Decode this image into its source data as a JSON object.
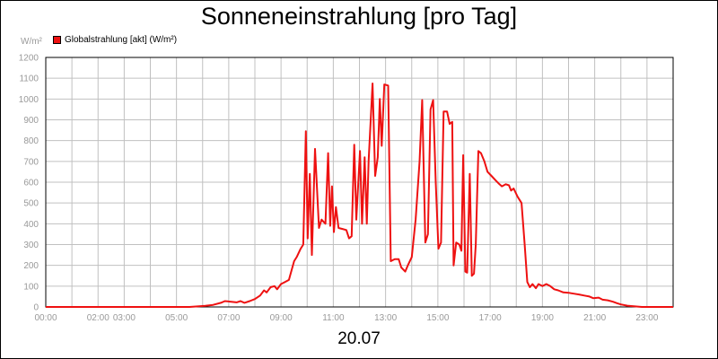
{
  "chart_data": {
    "type": "line",
    "title": "Sonneneinstrahlung [pro Tag]",
    "ylabel": "W/m²",
    "xlabel": "20.07",
    "legend": {
      "position": "top-left",
      "label": "Globalstrahlung [akt] (W/m²)"
    },
    "grid": true,
    "xlim": [
      0,
      24
    ],
    "ylim": [
      0,
      1200
    ],
    "x_ticks": [
      {
        "t": 0,
        "label": "00:00"
      },
      {
        "t": 2,
        "label": "02:00"
      },
      {
        "t": 3,
        "label": "03:00"
      },
      {
        "t": 5,
        "label": "05:00"
      },
      {
        "t": 7,
        "label": "07:00"
      },
      {
        "t": 9,
        "label": "09:00"
      },
      {
        "t": 11,
        "label": "11:00"
      },
      {
        "t": 13,
        "label": "13:00"
      },
      {
        "t": 15,
        "label": "15:00"
      },
      {
        "t": 17,
        "label": "17:00"
      },
      {
        "t": 19,
        "label": "19:00"
      },
      {
        "t": 21,
        "label": "21:00"
      },
      {
        "t": 23,
        "label": "23:00"
      }
    ],
    "y_ticks": [
      0,
      100,
      200,
      300,
      400,
      500,
      600,
      700,
      800,
      900,
      1000,
      1100,
      1200
    ],
    "series": [
      {
        "name": "Globalstrahlung [akt] (W/m²)",
        "color": "#ee1111",
        "points": [
          [
            0,
            0
          ],
          [
            5.5,
            0
          ],
          [
            6.1,
            5
          ],
          [
            6.4,
            10
          ],
          [
            6.7,
            20
          ],
          [
            6.85,
            28
          ],
          [
            7.1,
            25
          ],
          [
            7.3,
            22
          ],
          [
            7.45,
            28
          ],
          [
            7.6,
            20
          ],
          [
            7.8,
            28
          ],
          [
            8.0,
            38
          ],
          [
            8.2,
            55
          ],
          [
            8.35,
            80
          ],
          [
            8.45,
            70
          ],
          [
            8.6,
            95
          ],
          [
            8.75,
            100
          ],
          [
            8.85,
            85
          ],
          [
            9.0,
            110
          ],
          [
            9.15,
            120
          ],
          [
            9.3,
            130
          ],
          [
            9.5,
            220
          ],
          [
            9.6,
            240
          ],
          [
            9.75,
            280
          ],
          [
            9.85,
            300
          ],
          [
            9.95,
            845
          ],
          [
            10.02,
            330
          ],
          [
            10.1,
            640
          ],
          [
            10.18,
            250
          ],
          [
            10.3,
            760
          ],
          [
            10.45,
            380
          ],
          [
            10.55,
            420
          ],
          [
            10.7,
            400
          ],
          [
            10.8,
            740
          ],
          [
            10.88,
            390
          ],
          [
            10.95,
            580
          ],
          [
            11.02,
            360
          ],
          [
            11.1,
            480
          ],
          [
            11.2,
            380
          ],
          [
            11.35,
            375
          ],
          [
            11.5,
            370
          ],
          [
            11.6,
            330
          ],
          [
            11.7,
            340
          ],
          [
            11.8,
            780
          ],
          [
            11.88,
            420
          ],
          [
            12.02,
            750
          ],
          [
            12.1,
            400
          ],
          [
            12.2,
            720
          ],
          [
            12.28,
            400
          ],
          [
            12.35,
            700
          ],
          [
            12.5,
            1075
          ],
          [
            12.6,
            630
          ],
          [
            12.7,
            720
          ],
          [
            12.78,
            1000
          ],
          [
            12.85,
            775
          ],
          [
            12.95,
            1070
          ],
          [
            13.1,
            1065
          ],
          [
            13.2,
            220
          ],
          [
            13.35,
            230
          ],
          [
            13.5,
            230
          ],
          [
            13.6,
            190
          ],
          [
            13.75,
            170
          ],
          [
            13.85,
            200
          ],
          [
            14.0,
            240
          ],
          [
            14.15,
            420
          ],
          [
            14.3,
            700
          ],
          [
            14.4,
            995
          ],
          [
            14.52,
            310
          ],
          [
            14.62,
            350
          ],
          [
            14.72,
            950
          ],
          [
            14.82,
            995
          ],
          [
            14.92,
            600
          ],
          [
            15.02,
            280
          ],
          [
            15.12,
            310
          ],
          [
            15.22,
            940
          ],
          [
            15.35,
            940
          ],
          [
            15.45,
            880
          ],
          [
            15.55,
            890
          ],
          [
            15.6,
            200
          ],
          [
            15.7,
            310
          ],
          [
            15.82,
            300
          ],
          [
            15.9,
            270
          ],
          [
            15.97,
            730
          ],
          [
            16.05,
            170
          ],
          [
            16.12,
            165
          ],
          [
            16.22,
            640
          ],
          [
            16.3,
            150
          ],
          [
            16.38,
            160
          ],
          [
            16.45,
            300
          ],
          [
            16.55,
            750
          ],
          [
            16.65,
            740
          ],
          [
            16.78,
            700
          ],
          [
            16.9,
            650
          ],
          [
            17.05,
            630
          ],
          [
            17.2,
            610
          ],
          [
            17.32,
            595
          ],
          [
            17.45,
            580
          ],
          [
            17.6,
            590
          ],
          [
            17.72,
            585
          ],
          [
            17.8,
            560
          ],
          [
            17.9,
            570
          ],
          [
            18.05,
            530
          ],
          [
            18.2,
            500
          ],
          [
            18.32,
            300
          ],
          [
            18.42,
            120
          ],
          [
            18.52,
            95
          ],
          [
            18.62,
            110
          ],
          [
            18.75,
            90
          ],
          [
            18.85,
            110
          ],
          [
            19.0,
            100
          ],
          [
            19.15,
            110
          ],
          [
            19.3,
            100
          ],
          [
            19.45,
            85
          ],
          [
            19.6,
            80
          ],
          [
            19.8,
            70
          ],
          [
            20.0,
            68
          ],
          [
            20.2,
            64
          ],
          [
            20.4,
            60
          ],
          [
            20.6,
            55
          ],
          [
            20.8,
            50
          ],
          [
            20.95,
            42
          ],
          [
            21.15,
            45
          ],
          [
            21.3,
            35
          ],
          [
            21.5,
            32
          ],
          [
            21.7,
            25
          ],
          [
            21.85,
            18
          ],
          [
            22.0,
            12
          ],
          [
            22.25,
            6
          ],
          [
            22.5,
            3
          ],
          [
            22.8,
            0
          ],
          [
            24,
            0
          ]
        ]
      }
    ]
  },
  "colors": {
    "grid": "#c0c0c0",
    "axis": "#000000",
    "tick_text": "#999999"
  }
}
